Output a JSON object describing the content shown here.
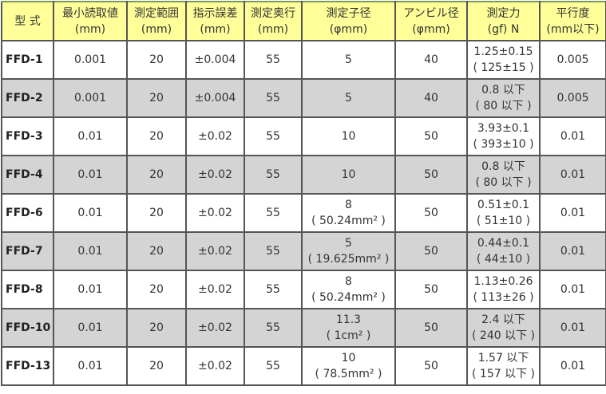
{
  "headers": [
    {
      "l1": "型 式",
      "l2": ""
    },
    {
      "l1": "最小読取値",
      "l2": "(mm)"
    },
    {
      "l1": "測定範囲",
      "l2": "(mm)"
    },
    {
      "l1": "指示誤差",
      "l2": "(mm)"
    },
    {
      "l1": "測定奥行",
      "l2": "(mm)"
    },
    {
      "l1": "測定子径",
      "l2": "(φmm)"
    },
    {
      "l1": "アンビル径",
      "l2": "(φmm)"
    },
    {
      "l1": "測定力",
      "l2": "(gf) N"
    },
    {
      "l1": "平行度",
      "l2": "(mm以下)"
    }
  ],
  "rows": [
    {
      "model": "FFD-1",
      "min": "0.001",
      "range": "20",
      "err": "±0.004",
      "depth": "55",
      "tip1": "5",
      "tip2": "",
      "anvil": "40",
      "force1": "1.25±0.15",
      "force2": "( 125±15 )",
      "par": "0.005"
    },
    {
      "model": "FFD-2",
      "min": "0.001",
      "range": "20",
      "err": "±0.004",
      "depth": "55",
      "tip1": "5",
      "tip2": "",
      "anvil": "40",
      "force1": "0.8 以下",
      "force2": "( 80 以下 )",
      "par": "0.005"
    },
    {
      "model": "FFD-3",
      "min": "0.01",
      "range": "20",
      "err": "±0.02",
      "depth": "55",
      "tip1": "10",
      "tip2": "",
      "anvil": "50",
      "force1": "3.93±0.1",
      "force2": "( 393±10 )",
      "par": "0.01"
    },
    {
      "model": "FFD-4",
      "min": "0.01",
      "range": "20",
      "err": "±0.02",
      "depth": "55",
      "tip1": "10",
      "tip2": "",
      "anvil": "50",
      "force1": "0.8 以下",
      "force2": "( 80 以下 )",
      "par": "0.01"
    },
    {
      "model": "FFD-6",
      "min": "0.01",
      "range": "20",
      "err": "±0.02",
      "depth": "55",
      "tip1": "8",
      "tip2": "( 50.24mm² )",
      "anvil": "50",
      "force1": "0.51±0.1",
      "force2": "( 51±10 )",
      "par": "0.01"
    },
    {
      "model": "FFD-7",
      "min": "0.01",
      "range": "20",
      "err": "±0.02",
      "depth": "55",
      "tip1": "5",
      "tip2": "( 19.625mm² )",
      "anvil": "50",
      "force1": "0.44±0.1",
      "force2": "( 44±10 )",
      "par": "0.01"
    },
    {
      "model": "FFD-8",
      "min": "0.01",
      "range": "20",
      "err": "±0.02",
      "depth": "55",
      "tip1": "8",
      "tip2": "( 50.24mm² )",
      "anvil": "50",
      "force1": "1.13±0.26",
      "force2": "( 113±26 )",
      "par": "0.01"
    },
    {
      "model": "FFD-10",
      "min": "0.01",
      "range": "20",
      "err": "±0.02",
      "depth": "55",
      "tip1": "11.3",
      "tip2": "( 1cm² )",
      "anvil": "50",
      "force1": "2.4 以下",
      "force2": "( 240 以下 )",
      "par": "0.01"
    },
    {
      "model": "FFD-13",
      "min": "0.01",
      "range": "20",
      "err": "±0.02",
      "depth": "55",
      "tip1": "10",
      "tip2": "( 78.5mm² )",
      "anvil": "50",
      "force1": "1.57 以下",
      "force2": "( 157 以下 )",
      "par": "0.01"
    }
  ]
}
